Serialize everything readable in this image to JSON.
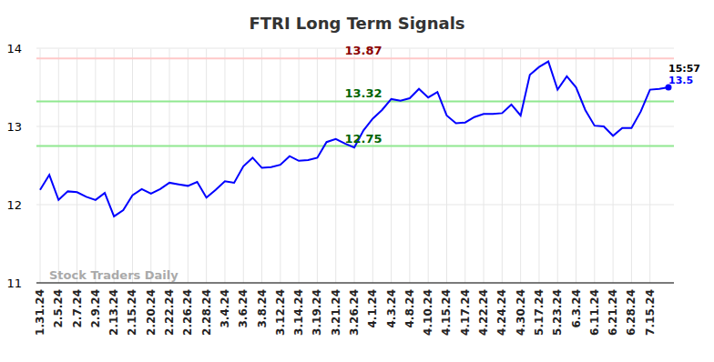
{
  "chart_data": {
    "type": "line",
    "title": "FTRI Long Term Signals",
    "categories": [
      "1.31.24",
      null,
      "2.5.24",
      null,
      "2.7.24",
      null,
      "2.9.24",
      null,
      "2.13.24",
      null,
      "2.15.24",
      null,
      "2.20.24",
      null,
      "2.22.24",
      null,
      "2.26.24",
      null,
      "2.28.24",
      null,
      "3.4.24",
      null,
      "3.6.24",
      null,
      "3.8.24",
      null,
      "3.12.24",
      null,
      "3.14.24",
      null,
      "3.19.24",
      null,
      "3.21.24",
      null,
      "3.26.24",
      null,
      "4.1.24",
      null,
      "4.3.24",
      null,
      "4.8.24",
      null,
      "4.10.24",
      null,
      "4.15.24",
      null,
      "4.17.24",
      null,
      "4.22.24",
      null,
      "4.24.24",
      null,
      "4.30.24",
      null,
      "5.17.24",
      null,
      "5.23.24",
      null,
      "6.3.24",
      null,
      "6.11.24",
      null,
      "6.21.24",
      null,
      "6.28.24",
      null,
      "7.15.24",
      null,
      null
    ],
    "values": [
      12.19,
      12.38,
      12.06,
      12.17,
      12.16,
      12.1,
      12.06,
      12.15,
      11.85,
      11.93,
      12.12,
      12.2,
      12.14,
      12.2,
      12.28,
      12.26,
      12.24,
      12.29,
      12.09,
      12.19,
      12.3,
      12.28,
      12.49,
      12.6,
      12.47,
      12.48,
      12.51,
      12.62,
      12.56,
      12.57,
      12.6,
      12.8,
      12.84,
      12.78,
      12.73,
      12.95,
      13.1,
      13.21,
      13.35,
      13.33,
      13.36,
      13.48,
      13.37,
      13.44,
      13.14,
      13.04,
      13.05,
      13.12,
      13.16,
      13.16,
      13.17,
      13.28,
      13.14,
      13.66,
      13.76,
      13.83,
      13.47,
      13.64,
      13.5,
      13.21,
      13.01,
      13.0,
      12.88,
      12.98,
      12.98,
      13.19,
      13.47,
      13.48,
      13.5
    ],
    "color": "#0000ff",
    "ylim": [
      11,
      14
    ],
    "yticks": [
      11,
      12,
      13,
      14
    ],
    "grid": true,
    "reference_lines": [
      {
        "value": 13.87,
        "color": "#ffc8c8",
        "label_color": "#8b0000"
      },
      {
        "value": 13.32,
        "color": "#90e890",
        "label_color": "#006400"
      },
      {
        "value": 12.75,
        "color": "#90e890",
        "label_color": "#006400"
      }
    ],
    "annotations": [
      {
        "text": "15:57"
      }
    ],
    "watermark": "Stock Traders Daily"
  }
}
